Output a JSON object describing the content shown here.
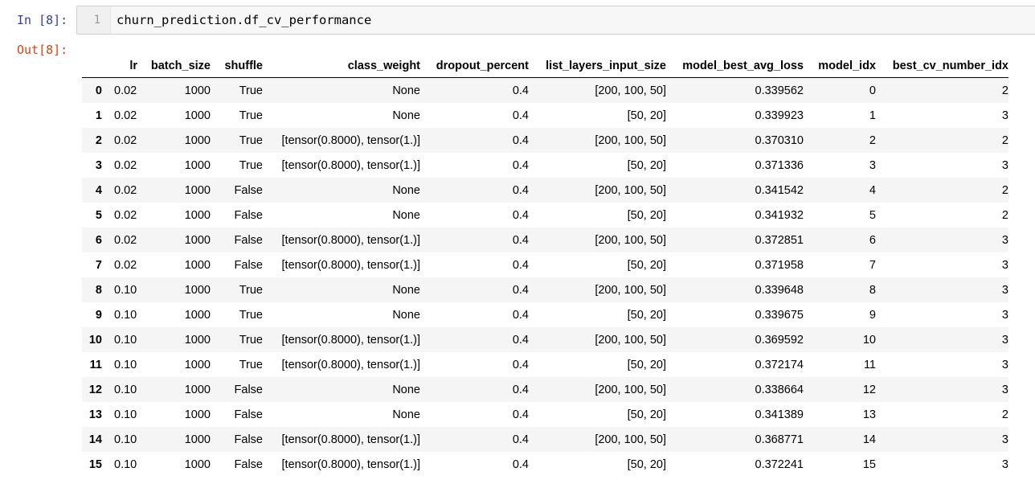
{
  "cell": {
    "in_prompt": "In [8]:",
    "out_prompt": "Out[8]:",
    "line_number": "1",
    "code": "churn_prediction.df_cv_performance"
  },
  "table": {
    "columns": [
      "",
      "lr",
      "batch_size",
      "shuffle",
      "class_weight",
      "dropout_percent",
      "list_layers_input_size",
      "model_best_avg_loss",
      "model_idx",
      "best_cv_number_idx"
    ],
    "rows": [
      [
        "0",
        "0.02",
        "1000",
        "True",
        "None",
        "0.4",
        "[200, 100, 50]",
        "0.339562",
        "0",
        "2"
      ],
      [
        "1",
        "0.02",
        "1000",
        "True",
        "None",
        "0.4",
        "[50, 20]",
        "0.339923",
        "1",
        "3"
      ],
      [
        "2",
        "0.02",
        "1000",
        "True",
        "[tensor(0.8000), tensor(1.)]",
        "0.4",
        "[200, 100, 50]",
        "0.370310",
        "2",
        "2"
      ],
      [
        "3",
        "0.02",
        "1000",
        "True",
        "[tensor(0.8000), tensor(1.)]",
        "0.4",
        "[50, 20]",
        "0.371336",
        "3",
        "3"
      ],
      [
        "4",
        "0.02",
        "1000",
        "False",
        "None",
        "0.4",
        "[200, 100, 50]",
        "0.341542",
        "4",
        "2"
      ],
      [
        "5",
        "0.02",
        "1000",
        "False",
        "None",
        "0.4",
        "[50, 20]",
        "0.341932",
        "5",
        "2"
      ],
      [
        "6",
        "0.02",
        "1000",
        "False",
        "[tensor(0.8000), tensor(1.)]",
        "0.4",
        "[200, 100, 50]",
        "0.372851",
        "6",
        "3"
      ],
      [
        "7",
        "0.02",
        "1000",
        "False",
        "[tensor(0.8000), tensor(1.)]",
        "0.4",
        "[50, 20]",
        "0.371958",
        "7",
        "3"
      ],
      [
        "8",
        "0.10",
        "1000",
        "True",
        "None",
        "0.4",
        "[200, 100, 50]",
        "0.339648",
        "8",
        "3"
      ],
      [
        "9",
        "0.10",
        "1000",
        "True",
        "None",
        "0.4",
        "[50, 20]",
        "0.339675",
        "9",
        "3"
      ],
      [
        "10",
        "0.10",
        "1000",
        "True",
        "[tensor(0.8000), tensor(1.)]",
        "0.4",
        "[200, 100, 50]",
        "0.369592",
        "10",
        "3"
      ],
      [
        "11",
        "0.10",
        "1000",
        "True",
        "[tensor(0.8000), tensor(1.)]",
        "0.4",
        "[50, 20]",
        "0.372174",
        "11",
        "3"
      ],
      [
        "12",
        "0.10",
        "1000",
        "False",
        "None",
        "0.4",
        "[200, 100, 50]",
        "0.338664",
        "12",
        "3"
      ],
      [
        "13",
        "0.10",
        "1000",
        "False",
        "None",
        "0.4",
        "[50, 20]",
        "0.341389",
        "13",
        "2"
      ],
      [
        "14",
        "0.10",
        "1000",
        "False",
        "[tensor(0.8000), tensor(1.)]",
        "0.4",
        "[200, 100, 50]",
        "0.368771",
        "14",
        "3"
      ],
      [
        "15",
        "0.10",
        "1000",
        "False",
        "[tensor(0.8000), tensor(1.)]",
        "0.4",
        "[50, 20]",
        "0.372241",
        "15",
        "3"
      ]
    ]
  },
  "colors": {
    "in_prompt": "#303f9f",
    "out_prompt": "#d84315",
    "stripe": "#f5f5f5"
  }
}
